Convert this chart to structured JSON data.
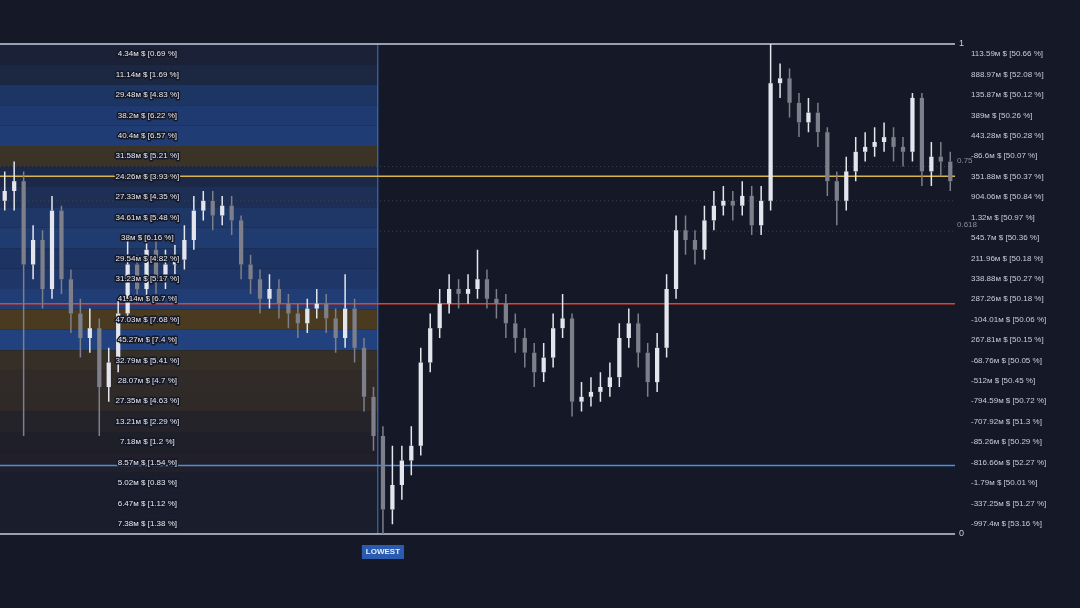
{
  "chart_data": {
    "type": "candlestick",
    "colors": [
      "#e4e6ee",
      "#e4e6ee",
      "#7d7f8a",
      "#e4e6ee",
      "#7d7f8a",
      "#e4e6ee",
      "#7d7f8a",
      "#7d7f8a",
      "#7d7f8a",
      "#e4e6ee",
      "#7d7f8a",
      "#e4e6ee",
      "#e4e6ee",
      "#e4e6ee",
      "#7d7f8a",
      "#e4e6ee",
      "#7d7f8a",
      "#e4e6ee",
      "#e4e6ee",
      "#e4e6ee",
      "#e4e6ee",
      "#e4e6ee",
      "#7d7f8a",
      "#e4e6ee",
      "#7d7f8a",
      "#7d7f8a",
      "#7d7f8a",
      "#7d7f8a",
      "#e4e6ee",
      "#7d7f8a",
      "#7d7f8a",
      "#7d7f8a",
      "#e4e6ee",
      "#e4e6ee",
      "#7d7f8a",
      "#7d7f8a",
      "#e4e6ee",
      "#7d7f8a",
      "#7d7f8a",
      "#7d7f8a",
      "#7d7f8a",
      "#e4e6ee",
      "#e4e6ee",
      "#e4e6ee",
      "#e4e6ee",
      "#e4e6ee",
      "#e4e6ee",
      "#e4e6ee",
      "#7d7f8a",
      "#e4e6ee",
      "#e4e6ee",
      "#7d7f8a",
      "#7d7f8a",
      "#7d7f8a",
      "#7d7f8a",
      "#7d7f8a",
      "#7d7f8a",
      "#e4e6ee",
      "#e4e6ee",
      "#e4e6ee",
      "#7d7f8a",
      "#e4e6ee",
      "#e4e6ee",
      "#e4e6ee",
      "#e4e6ee",
      "#e4e6ee",
      "#e4e6ee",
      "#7d7f8a",
      "#7d7f8a",
      "#e4e6ee",
      "#e4e6ee",
      "#e4e6ee",
      "#7d7f8a",
      "#7d7f8a",
      "#e4e6ee",
      "#e4e6ee",
      "#e4e6ee",
      "#7d7f8a",
      "#e4e6ee",
      "#7d7f8a",
      "#e4e6ee",
      "#e4e6ee",
      "#e4e6ee",
      "#7d7f8a",
      "#7d7f8a",
      "#e4e6ee",
      "#7d7f8a",
      "#7d7f8a",
      "#7d7f8a",
      "#e4e6ee",
      "#e4e6ee",
      "#e4e6ee",
      "#e4e6ee",
      "#e4e6ee",
      "#7d7f8a",
      "#7d7f8a",
      "#e4e6ee",
      "#7d7f8a",
      "#e4e6ee",
      "#7d7f8a",
      "#7d7f8a"
    ],
    "categories": [
      null,
      null,
      null,
      null,
      null,
      null,
      null,
      null,
      null,
      null,
      null,
      null,
      null,
      null,
      null,
      null,
      null,
      null,
      null,
      null,
      null,
      null,
      null,
      null,
      null,
      null,
      null,
      null,
      null,
      null,
      null,
      null,
      null,
      null,
      null,
      null,
      null,
      null,
      null,
      null,
      null,
      null,
      null,
      null,
      null,
      null,
      null,
      null,
      null,
      null,
      null,
      null,
      null,
      null,
      null,
      null,
      null,
      null,
      null,
      null,
      null,
      null,
      null,
      null,
      null,
      null,
      null,
      null,
      null,
      null,
      null,
      null,
      null,
      null,
      null,
      null,
      null,
      null,
      null,
      null,
      null,
      null,
      null,
      null,
      null,
      null,
      null,
      null,
      null,
      null,
      null,
      null,
      null,
      null,
      null,
      null,
      null,
      null,
      null,
      null,
      null
    ],
    "ohlc": [
      [
        0.68,
        0.74,
        0.66,
        0.7
      ],
      [
        0.7,
        0.76,
        0.66,
        0.72
      ],
      [
        0.72,
        0.74,
        0.2,
        0.55
      ],
      [
        0.55,
        0.63,
        0.52,
        0.6
      ],
      [
        0.6,
        0.62,
        0.46,
        0.5
      ],
      [
        0.5,
        0.69,
        0.48,
        0.66
      ],
      [
        0.66,
        0.67,
        0.49,
        0.52
      ],
      [
        0.52,
        0.54,
        0.41,
        0.45
      ],
      [
        0.45,
        0.48,
        0.36,
        0.4
      ],
      [
        0.4,
        0.46,
        0.37,
        0.42
      ],
      [
        0.42,
        0.44,
        0.2,
        0.3
      ],
      [
        0.3,
        0.38,
        0.27,
        0.35
      ],
      [
        0.35,
        0.48,
        0.33,
        0.45
      ],
      [
        0.45,
        0.61,
        0.43,
        0.55
      ],
      [
        0.55,
        0.57,
        0.47,
        0.5
      ],
      [
        0.5,
        0.61,
        0.48,
        0.58
      ],
      [
        0.58,
        0.6,
        0.49,
        0.52
      ],
      [
        0.52,
        0.58,
        0.5,
        0.55
      ],
      [
        0.55,
        0.59,
        0.53,
        0.56
      ],
      [
        0.56,
        0.63,
        0.54,
        0.6
      ],
      [
        0.6,
        0.69,
        0.58,
        0.66
      ],
      [
        0.66,
        0.7,
        0.64,
        0.68
      ],
      [
        0.68,
        0.7,
        0.62,
        0.65
      ],
      [
        0.65,
        0.69,
        0.63,
        0.67
      ],
      [
        0.67,
        0.69,
        0.61,
        0.64
      ],
      [
        0.64,
        0.65,
        0.52,
        0.55
      ],
      [
        0.55,
        0.57,
        0.49,
        0.52
      ],
      [
        0.52,
        0.54,
        0.45,
        0.48
      ],
      [
        0.48,
        0.53,
        0.46,
        0.5
      ],
      [
        0.5,
        0.52,
        0.44,
        0.47
      ],
      [
        0.47,
        0.49,
        0.42,
        0.45
      ],
      [
        0.45,
        0.47,
        0.4,
        0.43
      ],
      [
        0.43,
        0.48,
        0.41,
        0.46
      ],
      [
        0.46,
        0.5,
        0.44,
        0.47
      ],
      [
        0.47,
        0.49,
        0.41,
        0.44
      ],
      [
        0.44,
        0.46,
        0.37,
        0.4
      ],
      [
        0.4,
        0.53,
        0.38,
        0.46
      ],
      [
        0.46,
        0.48,
        0.35,
        0.38
      ],
      [
        0.38,
        0.4,
        0.25,
        0.28
      ],
      [
        0.28,
        0.3,
        0.17,
        0.2
      ],
      [
        0.2,
        0.22,
        0,
        0.05
      ],
      [
        0.05,
        0.18,
        0.02,
        0.1
      ],
      [
        0.1,
        0.18,
        0.07,
        0.15
      ],
      [
        0.15,
        0.22,
        0.12,
        0.18
      ],
      [
        0.18,
        0.38,
        0.16,
        0.35
      ],
      [
        0.35,
        0.45,
        0.33,
        0.42
      ],
      [
        0.42,
        0.5,
        0.4,
        0.47
      ],
      [
        0.47,
        0.53,
        0.45,
        0.5
      ],
      [
        0.5,
        0.52,
        0.46,
        0.49
      ],
      [
        0.49,
        0.53,
        0.47,
        0.5
      ],
      [
        0.5,
        0.58,
        0.48,
        0.52
      ],
      [
        0.52,
        0.54,
        0.46,
        0.48
      ],
      [
        0.48,
        0.5,
        0.44,
        0.47
      ],
      [
        0.47,
        0.49,
        0.4,
        0.43
      ],
      [
        0.43,
        0.45,
        0.37,
        0.4
      ],
      [
        0.4,
        0.42,
        0.34,
        0.37
      ],
      [
        0.37,
        0.39,
        0.3,
        0.33
      ],
      [
        0.33,
        0.39,
        0.31,
        0.36
      ],
      [
        0.36,
        0.45,
        0.34,
        0.42
      ],
      [
        0.42,
        0.49,
        0.4,
        0.44
      ],
      [
        0.44,
        0.45,
        0.24,
        0.27
      ],
      [
        0.27,
        0.31,
        0.25,
        0.28
      ],
      [
        0.28,
        0.32,
        0.26,
        0.29
      ],
      [
        0.29,
        0.33,
        0.27,
        0.3
      ],
      [
        0.3,
        0.35,
        0.28,
        0.32
      ],
      [
        0.32,
        0.43,
        0.3,
        0.4
      ],
      [
        0.4,
        0.46,
        0.38,
        0.43
      ],
      [
        0.43,
        0.45,
        0.34,
        0.37
      ],
      [
        0.37,
        0.39,
        0.28,
        0.31
      ],
      [
        0.31,
        0.41,
        0.29,
        0.38
      ],
      [
        0.38,
        0.53,
        0.36,
        0.5
      ],
      [
        0.5,
        0.65,
        0.48,
        0.62
      ],
      [
        0.62,
        0.65,
        0.57,
        0.6
      ],
      [
        0.6,
        0.62,
        0.55,
        0.58
      ],
      [
        0.58,
        0.67,
        0.56,
        0.64
      ],
      [
        0.64,
        0.7,
        0.62,
        0.67
      ],
      [
        0.67,
        0.71,
        0.65,
        0.68
      ],
      [
        0.68,
        0.7,
        0.64,
        0.67
      ],
      [
        0.67,
        0.72,
        0.65,
        0.69
      ],
      [
        0.69,
        0.71,
        0.61,
        0.63
      ],
      [
        0.63,
        0.71,
        0.61,
        0.68
      ],
      [
        0.68,
        1,
        0.66,
        0.92
      ],
      [
        0.92,
        0.96,
        0.89,
        0.93
      ],
      [
        0.93,
        0.95,
        0.85,
        0.88
      ],
      [
        0.88,
        0.9,
        0.81,
        0.84
      ],
      [
        0.84,
        0.89,
        0.82,
        0.86
      ],
      [
        0.86,
        0.88,
        0.79,
        0.82
      ],
      [
        0.82,
        0.83,
        0.69,
        0.72
      ],
      [
        0.72,
        0.74,
        0.63,
        0.68
      ],
      [
        0.68,
        0.77,
        0.66,
        0.74
      ],
      [
        0.74,
        0.81,
        0.72,
        0.78
      ],
      [
        0.78,
        0.82,
        0.76,
        0.79
      ],
      [
        0.79,
        0.83,
        0.77,
        0.8
      ],
      [
        0.8,
        0.84,
        0.78,
        0.81
      ],
      [
        0.81,
        0.83,
        0.76,
        0.79
      ],
      [
        0.79,
        0.81,
        0.75,
        0.78
      ],
      [
        0.78,
        0.9,
        0.76,
        0.89
      ],
      [
        0.89,
        0.9,
        0.71,
        0.74
      ],
      [
        0.74,
        0.8,
        0.71,
        0.77
      ],
      [
        0.77,
        0.8,
        0.73,
        0.76
      ],
      [
        0.76,
        0.78,
        0.7,
        0.72
      ]
    ],
    "ylim": [
      0,
      1
    ],
    "yticks": [
      0,
      1
    ],
    "ref_lines": [
      {
        "axis": "y",
        "value": 1,
        "label": null,
        "color": "#c9cdd8"
      },
      {
        "axis": "y",
        "value": 0,
        "label": null,
        "color": "#c9cdd8"
      },
      {
        "axis": "y",
        "value": 0.75,
        "label": "0.75",
        "color": "#3c4152",
        "line_style": "dotted"
      },
      {
        "axis": "y",
        "value": 0.73,
        "label": null,
        "color": "#d9b54a"
      },
      {
        "axis": "y",
        "value": 0.68,
        "label": null,
        "color": "#3c4152",
        "line_style": "dotted"
      },
      {
        "axis": "y",
        "value": 0.618,
        "label": "0.618",
        "color": "#3c4152",
        "line_style": "dotted"
      },
      {
        "axis": "y",
        "value": 0.47,
        "label": null,
        "color": "#e8402a"
      },
      {
        "axis": "y",
        "value": 0.14,
        "label": null,
        "color": "#4a8fe0"
      }
    ],
    "bands": [
      {
        "axis": "y",
        "from": 0.958,
        "to": 1,
        "label": "4.34м $ [0.69 %]",
        "color": "#1b2238"
      },
      {
        "axis": "y",
        "from": 0.917,
        "to": 0.958,
        "label": "11.14м $ [1.69 %]",
        "color": "#1c2742"
      },
      {
        "axis": "y",
        "from": 0.875,
        "to": 0.917,
        "label": "29.48м $ [4.83 %]",
        "color": "#1d3563"
      },
      {
        "axis": "y",
        "from": 0.833,
        "to": 0.875,
        "label": "38.2м $ [6.22 %]",
        "color": "#1e3a70"
      },
      {
        "axis": "y",
        "from": 0.792,
        "to": 0.833,
        "label": "40.4м $ [6.57 %]",
        "color": "#1f3c74"
      },
      {
        "axis": "y",
        "from": 0.75,
        "to": 0.792,
        "label": "31.58м $ [5.21 %]",
        "color": "#3a3326"
      },
      {
        "axis": "y",
        "from": 0.708,
        "to": 0.75,
        "label": "24.26м $ [3.93 %]",
        "color": "#1c2847"
      },
      {
        "axis": "y",
        "from": 0.667,
        "to": 0.708,
        "label": "27.33м $ [4.35 %]",
        "color": "#1d2f55"
      },
      {
        "axis": "y",
        "from": 0.625,
        "to": 0.667,
        "label": "34.61м $ [5.48 %]",
        "color": "#1e3766"
      },
      {
        "axis": "y",
        "from": 0.583,
        "to": 0.625,
        "label": "38м $ [6.16 %]",
        "color": "#1f3b70"
      },
      {
        "axis": "y",
        "from": 0.542,
        "to": 0.583,
        "label": "29.54м $ [4.82 %]",
        "color": "#1d3361"
      },
      {
        "axis": "y",
        "from": 0.5,
        "to": 0.542,
        "label": "31.23м $ [5.17 %]",
        "color": "#1e3668"
      },
      {
        "axis": "y",
        "from": 0.458,
        "to": 0.5,
        "label": "41.14м $ [6.7 %]",
        "color": "#203d76"
      },
      {
        "axis": "y",
        "from": 0.417,
        "to": 0.458,
        "label": "47.03м $ [7.68 %]",
        "color": "#4a3a20"
      },
      {
        "axis": "y",
        "from": 0.375,
        "to": 0.417,
        "label": "45.27м $ [7.4 %]",
        "color": "#22417f"
      },
      {
        "axis": "y",
        "from": 0.333,
        "to": 0.375,
        "label": "32.79м $ [5.41 %]",
        "color": "#352f27"
      },
      {
        "axis": "y",
        "from": 0.292,
        "to": 0.333,
        "label": "28.07м $ [4.7 %]",
        "color": "#302b28"
      },
      {
        "axis": "y",
        "from": 0.25,
        "to": 0.292,
        "label": "27.35м $ [4.63 %]",
        "color": "#2f2a28"
      },
      {
        "axis": "y",
        "from": 0.208,
        "to": 0.25,
        "label": "13.21м $ [2.29 %]",
        "color": "#25232a"
      },
      {
        "axis": "y",
        "from": 0.167,
        "to": 0.208,
        "label": "7.18м $ [1.2 %]",
        "color": "#1f1f2a"
      },
      {
        "axis": "y",
        "from": 0.125,
        "to": 0.167,
        "label": "8.57м $ [1.54 %]",
        "color": "#201f2a"
      },
      {
        "axis": "y",
        "from": 0.083,
        "to": 0.125,
        "label": "5.02м $ [0.83 %]",
        "color": "#1a1d2c"
      },
      {
        "axis": "y",
        "from": 0.042,
        "to": 0.083,
        "label": "6.47м $ [1.12 %]",
        "color": "#1a1d2c"
      },
      {
        "axis": "y",
        "from": 0,
        "to": 0.042,
        "label": "7.38м $ [1.38 %]",
        "color": "#1a1d2c"
      }
    ],
    "annotations": [
      {
        "text": "LOWEST",
        "y": 0
      },
      "113.59м $ [50.66 %]",
      "888.97м $ [52.08 %]",
      "135.87м $ [50.12 %]",
      "389м $ [50.26 %]",
      "443.28м $ [50.28 %]",
      "-86.6м $ [50.07 %]",
      "351.88м $ [50.37 %]",
      "904.06м $ [50.84 %]",
      "1.32м $ [50.97 %]",
      "545.7м $ [50.36 %]",
      "211.96м $ [50.18 %]",
      "338.88м $ [50.27 %]",
      "287.26м $ [50.18 %]",
      "-104.01м $ [50.06 %]",
      "267.81м $ [50.15 %]",
      "-68.76м $ [50.05 %]",
      "-512м $ [50.45 %]",
      "-794.59м $ [50.72 %]",
      "-707.92м $ [51.3 %]",
      "-85.26м $ [50.29 %]",
      "-816.66м $ [52.27 %]",
      "-1.79м $ [50.01 %]",
      "-337.25м $ [51.27 %]",
      "-997.4м $ [53.16 %]"
    ]
  }
}
